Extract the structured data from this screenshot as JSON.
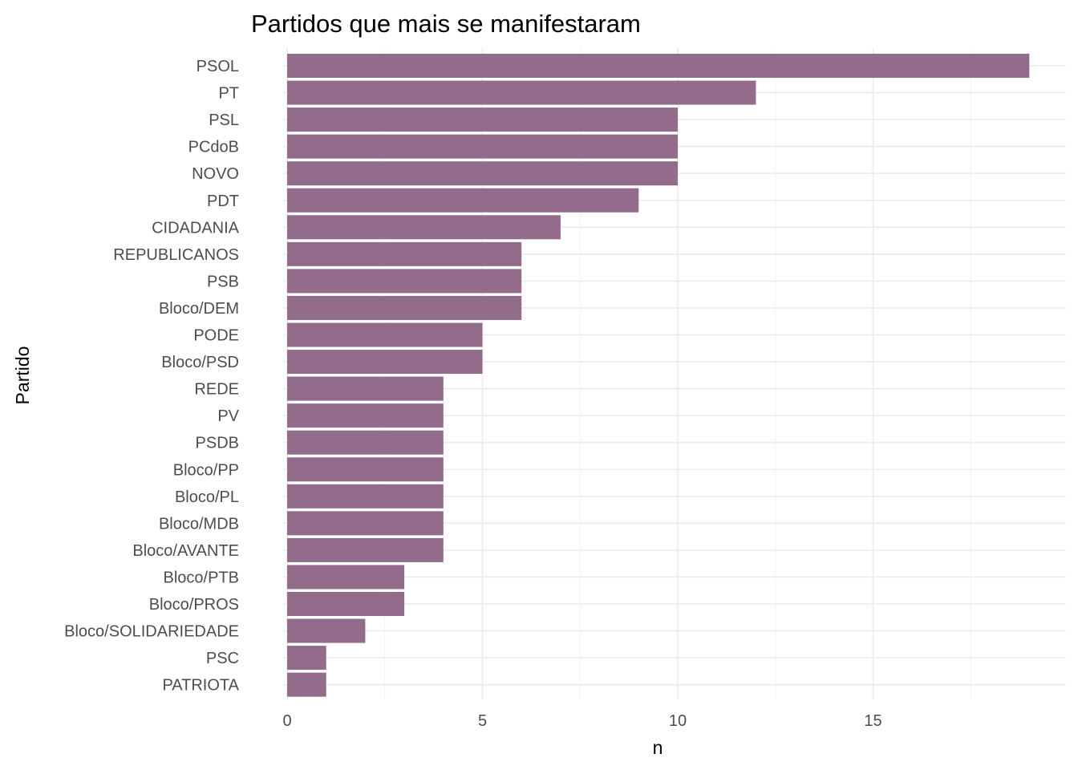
{
  "chart_data": {
    "type": "bar",
    "orientation": "horizontal",
    "title": "Partidos que mais se manifestaram",
    "xlabel": "n",
    "ylabel": "Partido",
    "xlim": [
      0,
      19
    ],
    "x_ticks": [
      0,
      5,
      10,
      15
    ],
    "grid": true,
    "legend": "none",
    "bar_color": "#946c8b",
    "categories": [
      "PSOL",
      "PT",
      "PSL",
      "PCdoB",
      "NOVO",
      "PDT",
      "CIDADANIA",
      "REPUBLICANOS",
      "PSB",
      "Bloco/DEM",
      "PODE",
      "Bloco/PSD",
      "REDE",
      "PV",
      "PSDB",
      "Bloco/PP",
      "Bloco/PL",
      "Bloco/MDB",
      "Bloco/AVANTE",
      "Bloco/PTB",
      "Bloco/PROS",
      "Bloco/SOLIDARIEDADE",
      "PSC",
      "PATRIOTA"
    ],
    "values": [
      19,
      12,
      10,
      10,
      10,
      9,
      7,
      6,
      6,
      6,
      5,
      5,
      4,
      4,
      4,
      4,
      4,
      4,
      4,
      3,
      3,
      2,
      1,
      1
    ]
  }
}
